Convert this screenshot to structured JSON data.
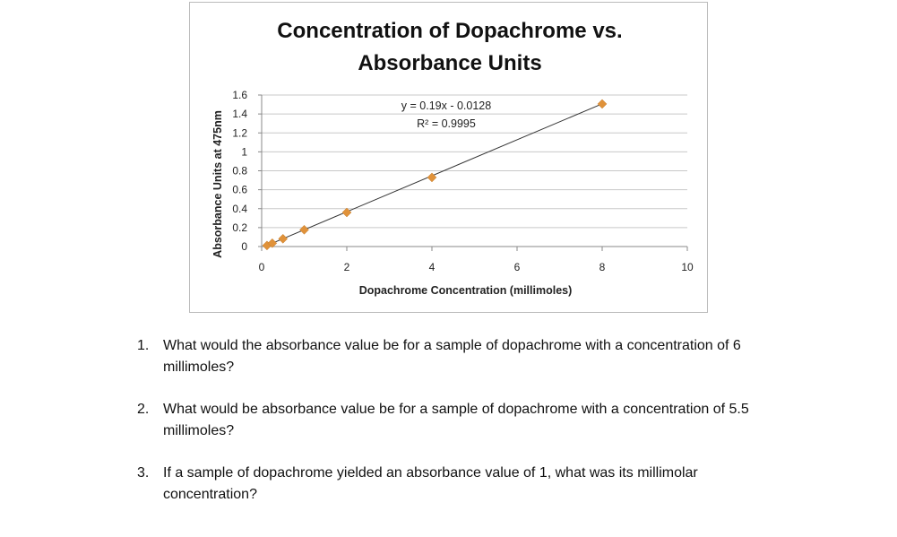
{
  "chart_data": {
    "type": "scatter",
    "title": "Concentration of Dopachrome vs. Absorbance Units",
    "x_label": "Dopachrome Concentration (millimoles)",
    "y_label": "Absorbance Units at 475nm",
    "x": [
      0.125,
      0.25,
      0.5,
      1,
      2,
      4,
      8
    ],
    "values": [
      0.011,
      0.035,
      0.082,
      0.177,
      0.36,
      0.73,
      1.506
    ],
    "color": "#e0923a",
    "xlim": [
      0,
      10
    ],
    "xticks": [
      0,
      2,
      4,
      6,
      8,
      10
    ],
    "ylim": [
      0,
      1.6
    ],
    "yticks": [
      0,
      0.2,
      0.4,
      0.6,
      0.8,
      1,
      1.2,
      1.4,
      1.6
    ],
    "grid": true,
    "trendline": {
      "slope": 0.19,
      "intercept": -0.0128,
      "equation": "y = 0.19x - 0.0128",
      "r_squared": "R² = 0.9995"
    }
  },
  "questions": [
    {
      "number": "1.",
      "text": "What would the absorbance value be for a sample of dopachrome with a concentration of 6 millimoles?"
    },
    {
      "number": "2.",
      "text": "What would be absorbance value be for a sample of dopachrome with a concentration of 5.5 millimoles?"
    },
    {
      "number": "3.",
      "text": "If a sample of dopachrome yielded an absorbance value of 1, what was its millimolar concentration?"
    }
  ]
}
